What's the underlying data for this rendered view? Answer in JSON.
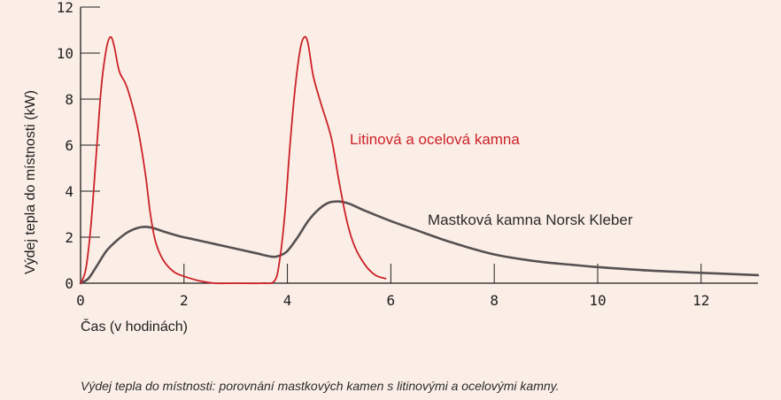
{
  "caption": "Výdej tepla do místnosti: porovnání mastkových kamen s litinovými a ocelovými kamny.",
  "colors": {
    "background": "#fbeee6",
    "cast_iron": "#cc2229",
    "soapstone": "#555152",
    "axis": "#1e1e1e"
  },
  "chart_data": {
    "type": "line",
    "title": "",
    "xlabel": "Čas (v hodinách)",
    "ylabel": "Výdej tepla do místnosti (kW)",
    "xlim": [
      0,
      13.1
    ],
    "ylim": [
      0,
      12
    ],
    "x_ticks": [
      "0",
      "2",
      "4",
      "6",
      "8",
      "10",
      "12"
    ],
    "y_ticks": [
      "0",
      "2",
      "4",
      "6",
      "8",
      "10",
      "12"
    ],
    "grid": false,
    "series": [
      {
        "name": "Litinová a ocelová kamna",
        "color": "#cc2229",
        "x": [
          0,
          0.1,
          0.2,
          0.3,
          0.4,
          0.5,
          0.58,
          0.65,
          0.75,
          0.9,
          1.1,
          1.25,
          1.35,
          1.45,
          1.6,
          1.8,
          2.0,
          2.3,
          2.6,
          3.0,
          3.5,
          3.75,
          3.85,
          3.95,
          4.05,
          4.15,
          4.25,
          4.33,
          4.4,
          4.5,
          4.65,
          4.85,
          5.0,
          5.15,
          5.3,
          5.5,
          5.7,
          5.9
        ],
        "y": [
          0,
          0.6,
          2.5,
          5.5,
          8.5,
          10.2,
          10.7,
          10.3,
          9.2,
          8.5,
          6.8,
          4.8,
          3.0,
          1.8,
          1.0,
          0.5,
          0.3,
          0.1,
          0,
          0,
          0,
          0.1,
          1.0,
          3.0,
          6.0,
          8.5,
          10.2,
          10.7,
          10.4,
          9.0,
          7.8,
          6.3,
          4.4,
          2.7,
          1.6,
          0.8,
          0.35,
          0.2
        ]
      },
      {
        "name": "Mastková kamna Norsk Kleber",
        "color": "#555152",
        "x": [
          0,
          0.15,
          0.3,
          0.5,
          0.7,
          0.9,
          1.1,
          1.25,
          1.4,
          1.6,
          1.9,
          2.2,
          2.6,
          3.0,
          3.4,
          3.7,
          3.85,
          4.0,
          4.2,
          4.4,
          4.6,
          4.8,
          5.0,
          5.2,
          5.5,
          6.0,
          6.5,
          7.0,
          7.5,
          8.0,
          8.5,
          9.0,
          9.5,
          10.0,
          11.0,
          12.0,
          13.1
        ],
        "y": [
          0,
          0.2,
          0.7,
          1.4,
          1.85,
          2.2,
          2.4,
          2.45,
          2.4,
          2.25,
          2.05,
          1.9,
          1.7,
          1.5,
          1.3,
          1.15,
          1.2,
          1.4,
          2.0,
          2.7,
          3.2,
          3.5,
          3.55,
          3.45,
          3.15,
          2.7,
          2.3,
          1.9,
          1.55,
          1.25,
          1.05,
          0.9,
          0.8,
          0.7,
          0.55,
          0.45,
          0.35
        ]
      }
    ]
  }
}
